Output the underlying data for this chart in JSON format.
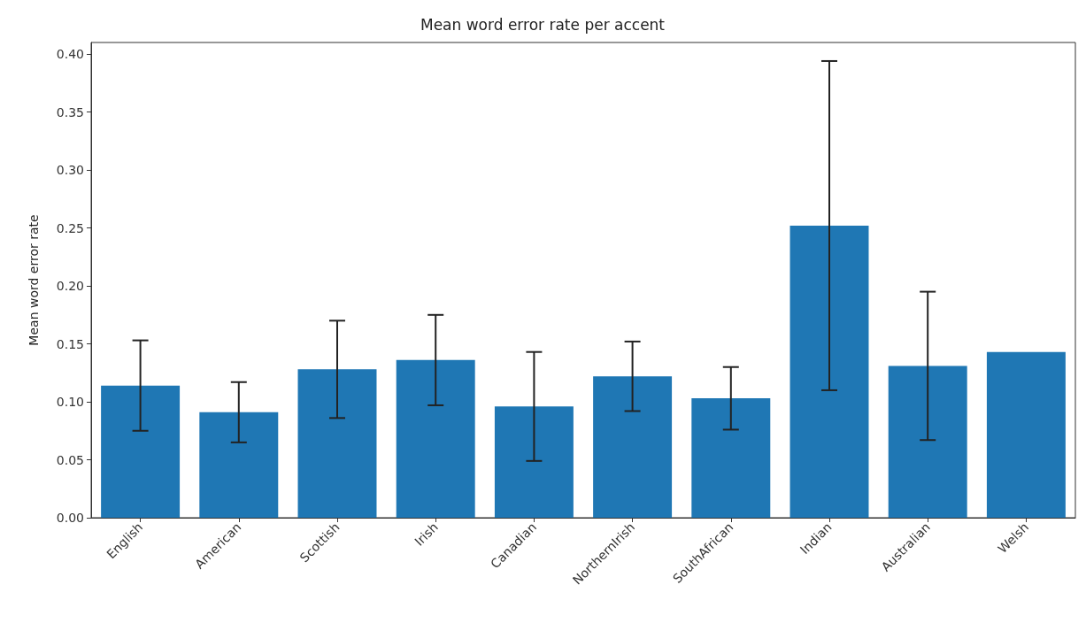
{
  "chart_data": {
    "type": "bar",
    "title": "Mean word error rate per accent",
    "ylabel": "Mean word error rate",
    "categories": [
      "English",
      "American",
      "Scottish",
      "Irish",
      "Canadian",
      "NorthernIrish",
      "SouthAfrican",
      "Indian",
      "Australian",
      "Welsh"
    ],
    "values": [
      0.114,
      0.091,
      0.128,
      0.136,
      0.096,
      0.122,
      0.103,
      0.252,
      0.131,
      0.143
    ],
    "errors": [
      0.039,
      0.026,
      0.042,
      0.039,
      0.047,
      0.03,
      0.027,
      0.142,
      0.064,
      null
    ],
    "color": "#1f77b4",
    "ylim": [
      0,
      0.41
    ],
    "yticks": [
      {
        "value": 0,
        "label": "0.00"
      },
      {
        "value": 0.05,
        "label": "0.05"
      },
      {
        "value": 0.1,
        "label": "0.10"
      },
      {
        "value": 0.15,
        "label": "0.15"
      },
      {
        "value": 0.2,
        "label": "0.20"
      },
      {
        "value": 0.25,
        "label": "0.25"
      },
      {
        "value": 0.3,
        "label": "0.30"
      },
      {
        "value": 0.35,
        "label": "0.35"
      },
      {
        "value": 0.4,
        "label": "0.40"
      }
    ],
    "grid": false
  }
}
